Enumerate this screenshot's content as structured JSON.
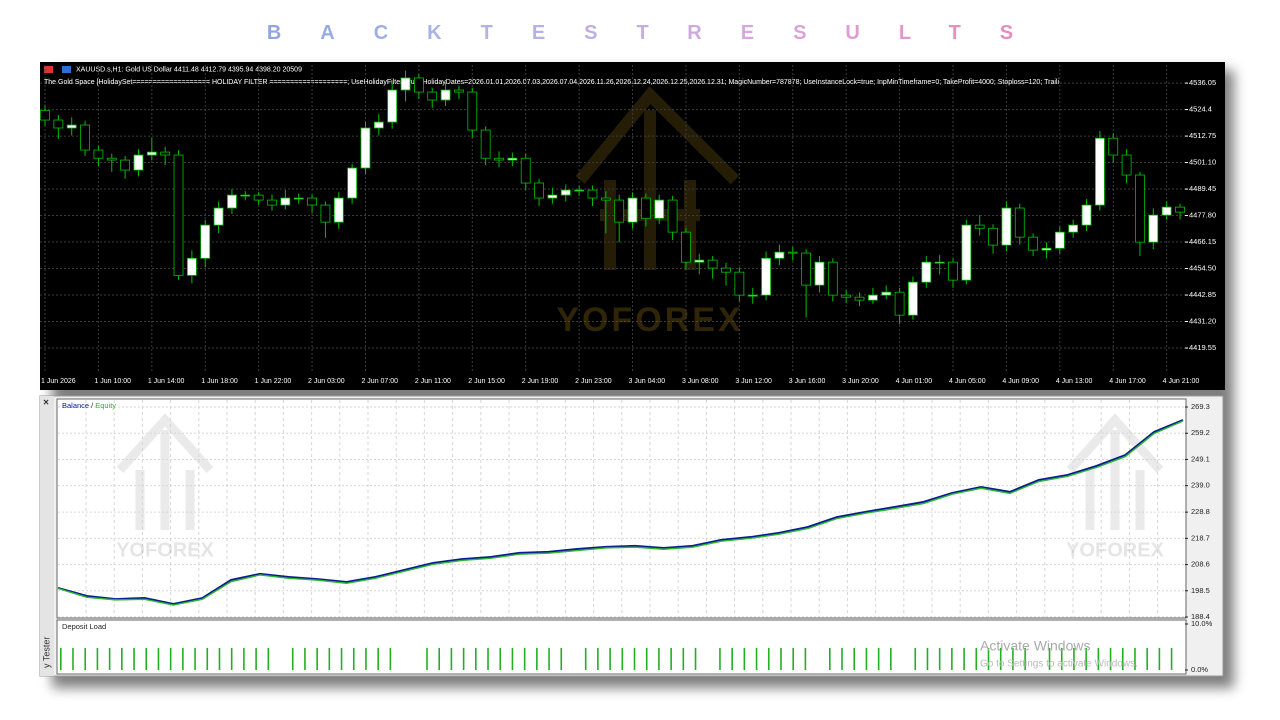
{
  "title": "BACKTEST RESULTS",
  "watermark": "YOFOREX",
  "windows_notice": [
    "Activate Windows",
    "Go to Settings to activate Windows."
  ],
  "side_tab": "y Tester",
  "chart_data": [
    {
      "type": "candlestick",
      "symbol_info": "XAUUSD.s,H1:  Gold US Dollar  4411.48 4412.79 4395.94 4398.20  20509",
      "indicator_info": "The Gold Space [HolidaySet=================== HOLIDAY FILTER ===================; UseHolidayFilter=true; HolidayDates=2026.01.01,2026.07.03,2026.07.04,2026.11.26,2026.12.24,2026.12.25,2026.12.31; MagicNumber=787878; UseInstanceLock=true; InpMinTimeframe=0; TakeProfit=4000; Stoploss=120; Traili",
      "categories": [
        "1 Jun 2026",
        null,
        null,
        null,
        "1 Jun 10:00",
        null,
        null,
        null,
        "1 Jun 14:00",
        null,
        null,
        null,
        "1 Jun 18:00",
        null,
        null,
        null,
        "1 Jun 22:00",
        null,
        null,
        null,
        "2 Jun 03:00",
        null,
        null,
        null,
        "2 Jun 07:00",
        null,
        null,
        null,
        "2 Jun 11:00",
        null,
        null,
        null,
        "2 Jun 15:00",
        null,
        null,
        null,
        "2 Jun 19:00",
        null,
        null,
        null,
        "2 Jun 23:00",
        null,
        null,
        null,
        "3 Jun 04:00",
        null,
        null,
        null,
        "3 Jun 08:00",
        null,
        null,
        null,
        "3 Jun 12:00",
        null,
        null,
        null,
        "3 Jun 16:00",
        null,
        null,
        null,
        "3 Jun 20:00",
        null,
        null,
        null,
        "4 Jun 01:00",
        null,
        null,
        null,
        "4 Jun 05:00",
        null,
        null,
        null,
        "4 Jun 09:00",
        null,
        null,
        null,
        "4 Jun 13:00",
        null,
        null,
        null,
        "4 Jun 17:00",
        null,
        null,
        null,
        "4 Jun 21:00",
        null
      ],
      "open": [
        4524.0,
        4519.8,
        4516.3,
        4517.6,
        4506.6,
        4503.0,
        4502.2,
        4497.8,
        4504.4,
        4505.7,
        4504.4,
        4451.5,
        4459.0,
        4473.6,
        4481.1,
        4486.8,
        4486.8,
        4484.6,
        4482.4,
        4485.5,
        4485.5,
        4482.4,
        4474.9,
        4485.5,
        4498.7,
        4516.3,
        4518.9,
        4533.0,
        4538.3,
        4532.1,
        4528.6,
        4533.0,
        4532.1,
        4515.4,
        4503.0,
        4502.2,
        4503.0,
        4492.1,
        4485.5,
        4486.8,
        4489.0,
        4489.0,
        4485.5,
        4484.6,
        4474.9,
        4485.5,
        4476.6,
        4484.6,
        4470.5,
        4457.3,
        4458.2,
        4454.7,
        4452.9,
        4442.8,
        4442.8,
        4459.0,
        4461.7,
        4461.3,
        4447.2,
        4457.3,
        4442.8,
        4441.9,
        4440.6,
        4442.8,
        4444.1,
        4434.0,
        4448.5,
        4457.3,
        4457.3,
        4449.4,
        4473.6,
        4472.2,
        4464.8,
        4481.1,
        4468.3,
        4462.6,
        4463.4,
        4470.5,
        4473.6,
        4482.4,
        4511.8,
        4504.4,
        4495.6,
        4466.1,
        4478.0,
        4481.5
      ],
      "high": [
        4526.5,
        4522.0,
        4521.0,
        4519.5,
        4508.5,
        4505.0,
        4504.0,
        4507.0,
        4512.0,
        4508.0,
        4506.5,
        4462.5,
        4476.0,
        4484.0,
        4489.5,
        4488.5,
        4488.0,
        4487.0,
        4489.0,
        4487.5,
        4487.0,
        4484.0,
        4488.0,
        4500.5,
        4519.0,
        4522.5,
        4536.0,
        4541.5,
        4540.0,
        4534.0,
        4536.5,
        4535.0,
        4534.0,
        4517.0,
        4506.0,
        4505.5,
        4505.0,
        4494.0,
        4490.0,
        4491.5,
        4491.0,
        4491.0,
        4488.5,
        4487.0,
        4488.0,
        4487.5,
        4487.0,
        4486.5,
        4472.5,
        4461.0,
        4460.0,
        4457.0,
        4455.0,
        4446.0,
        4462.0,
        4465.0,
        4464.0,
        4463.0,
        4460.0,
        4459.0,
        4445.0,
        4444.0,
        4446.0,
        4447.0,
        4446.0,
        4451.0,
        4460.0,
        4460.5,
        4459.0,
        4476.0,
        4478.0,
        4474.0,
        4484.0,
        4483.0,
        4470.0,
        4466.0,
        4473.0,
        4476.0,
        4485.0,
        4515.0,
        4514.0,
        4507.0,
        4497.0,
        4481.0,
        4484.0,
        4483.0
      ],
      "low": [
        4517.0,
        4511.5,
        4513.0,
        4504.0,
        4499.5,
        4497.0,
        4494.0,
        4495.0,
        4502.0,
        4500.0,
        4449.5,
        4448.0,
        4455.0,
        4470.0,
        4478.5,
        4484.5,
        4482.5,
        4480.0,
        4480.5,
        4483.0,
        4479.0,
        4468.0,
        4472.0,
        4483.0,
        4496.0,
        4513.0,
        4516.0,
        4528.0,
        4529.0,
        4525.0,
        4526.0,
        4529.0,
        4512.0,
        4500.0,
        4499.0,
        4499.5,
        4489.0,
        4482.0,
        4483.0,
        4484.0,
        4486.5,
        4482.0,
        4470.0,
        4466.0,
        4472.0,
        4473.0,
        4474.0,
        4467.0,
        4454.0,
        4452.0,
        4450.0,
        4447.0,
        4440.0,
        4439.0,
        4440.5,
        4456.0,
        4458.0,
        4433.0,
        4444.0,
        4440.0,
        4439.5,
        4438.0,
        4439.0,
        4441.0,
        4430.0,
        4432.0,
        4446.0,
        4452.0,
        4446.0,
        4447.5,
        4469.0,
        4461.0,
        4462.0,
        4465.0,
        4460.0,
        4459.0,
        4461.0,
        4468.0,
        4471.0,
        4480.0,
        4501.0,
        4492.0,
        4460.0,
        4463.0,
        4476.0,
        4476.0
      ],
      "close": [
        4519.8,
        4516.3,
        4517.6,
        4506.6,
        4503.0,
        4502.2,
        4497.8,
        4504.4,
        4505.7,
        4504.4,
        4451.5,
        4459.0,
        4473.6,
        4481.1,
        4486.8,
        4486.8,
        4484.6,
        4482.4,
        4485.5,
        4485.5,
        4482.4,
        4474.9,
        4485.5,
        4498.7,
        4516.3,
        4518.9,
        4533.0,
        4538.3,
        4532.1,
        4528.6,
        4533.0,
        4532.1,
        4515.4,
        4503.0,
        4502.2,
        4503.0,
        4492.1,
        4485.5,
        4486.8,
        4489.0,
        4489.0,
        4485.5,
        4484.6,
        4474.9,
        4485.5,
        4476.6,
        4484.6,
        4470.5,
        4457.3,
        4458.2,
        4454.7,
        4452.9,
        4442.8,
        4442.8,
        4459.0,
        4461.7,
        4461.3,
        4447.2,
        4457.3,
        4442.8,
        4441.9,
        4440.6,
        4442.8,
        4444.1,
        4434.0,
        4448.5,
        4457.3,
        4457.3,
        4449.4,
        4473.6,
        4472.2,
        4464.8,
        4481.1,
        4468.3,
        4462.6,
        4463.4,
        4470.5,
        4473.6,
        4482.4,
        4511.8,
        4504.4,
        4495.6,
        4466.1,
        4478.0,
        4481.5,
        4479.3
      ],
      "up_color": "#ffffff",
      "down_color": "#000000",
      "wick_color": "#00c000",
      "ylim": [
        4409,
        4544
      ],
      "yticks": [
        4536.05,
        4524.4,
        {
          "value": 4512.75,
          "label": "4512.75"
        },
        {
          "value": 4501.1,
          "label": "4501.10"
        },
        4489.45,
        {
          "value": 4477.8,
          "label": "4477.80"
        },
        4466.15,
        {
          "value": 4454.5,
          "label": "4454.50"
        },
        4442.85,
        {
          "value": 4431.2,
          "label": "4431.20"
        },
        4419.55
      ],
      "grid": true
    },
    {
      "type": "line",
      "legend_separator": "/",
      "series": [
        {
          "name": "Balance",
          "color": "#0a1f8f",
          "values": [
            199.6,
            196.5,
            195.3,
            195.7,
            193.4,
            195.7,
            202.7,
            205.0,
            203.8,
            203.0,
            201.9,
            203.8,
            206.5,
            209.2,
            210.7,
            211.5,
            213.1,
            213.5,
            214.6,
            215.4,
            215.8,
            215.0,
            215.8,
            218.1,
            219.2,
            220.8,
            223.1,
            226.9,
            228.9,
            230.8,
            232.7,
            236.2,
            238.5,
            236.6,
            241.2,
            243.1,
            246.6,
            250.8,
            259.7,
            264.3
          ]
        },
        {
          "name": "Equity",
          "color": "#2fb82f",
          "values": [
            199.4,
            196.0,
            195.0,
            195.2,
            193.0,
            195.2,
            202.0,
            204.6,
            203.3,
            202.6,
            201.4,
            203.3,
            206.0,
            208.7,
            210.2,
            211.0,
            212.6,
            213.0,
            214.0,
            215.0,
            215.3,
            214.5,
            215.3,
            217.6,
            218.7,
            220.3,
            222.5,
            226.3,
            228.4,
            230.2,
            232.1,
            235.7,
            238.0,
            236.0,
            240.6,
            242.6,
            246.0,
            250.2,
            259.1,
            263.9
          ]
        }
      ],
      "ylim": [
        188.4,
        272.0
      ],
      "yticks": [
        269.3,
        259.2,
        249.1,
        {
          "value": 239.0,
          "label": "239.0"
        },
        228.8,
        218.7,
        208.6,
        198.5,
        188.4
      ],
      "grid": true
    },
    {
      "type": "bar",
      "title": "Deposit Load",
      "color": "#22b022",
      "values": [
        4.8,
        4.8,
        4.8,
        4.8,
        4.8,
        4.8,
        4.8,
        4.8,
        4.8,
        4.8,
        4.8,
        4.8,
        4.8,
        4.8,
        4.8,
        4.8,
        4.8,
        4.8,
        0,
        4.8,
        4.8,
        4.8,
        4.8,
        4.8,
        4.8,
        4.8,
        4.8,
        4.8,
        0,
        0,
        4.8,
        4.8,
        4.8,
        4.8,
        4.8,
        4.8,
        4.8,
        4.8,
        4.8,
        4.8,
        4.8,
        4.8,
        0,
        4.8,
        4.8,
        4.8,
        4.8,
        4.8,
        4.8,
        4.8,
        4.8,
        4.8,
        4.8,
        0,
        4.8,
        4.8,
        4.8,
        4.8,
        4.8,
        4.8,
        4.8,
        4.8,
        0,
        4.8,
        4.8,
        4.8,
        4.8,
        4.8,
        4.8,
        0,
        4.8,
        4.8,
        4.8,
        4.8,
        4.8,
        4.8,
        4.8,
        4.8,
        4.8,
        4.8,
        0,
        4.8,
        4.8,
        4.8,
        4.8,
        4.8,
        4.8,
        4.8,
        4.8,
        4.8,
        4.8,
        4.8
      ],
      "ylim": [
        0,
        10
      ],
      "yticks": [
        {
          "value": 10,
          "label": "10.0%"
        },
        {
          "value": 0,
          "label": "0.0%"
        }
      ],
      "grid": false
    }
  ]
}
